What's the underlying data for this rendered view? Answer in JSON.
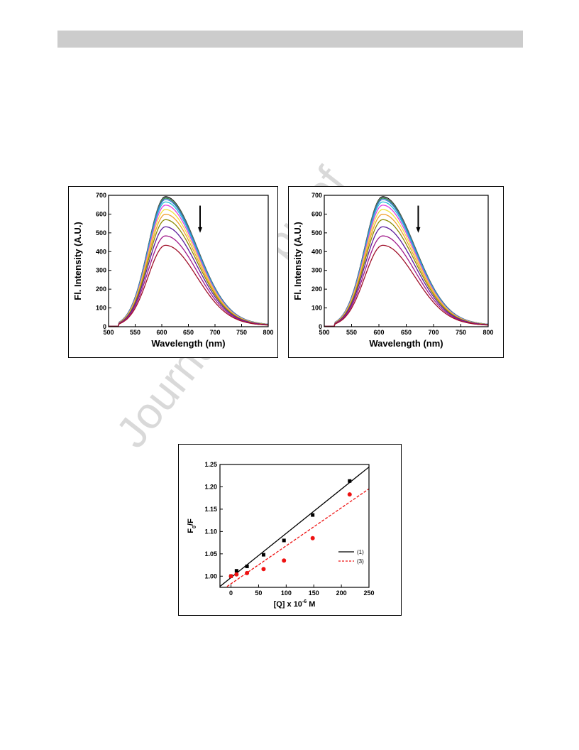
{
  "page": {
    "watermark": "Journal Pre-proof"
  },
  "chart_data": [
    {
      "id": "fig-a",
      "type": "line",
      "xlabel": "Wavelength (nm)",
      "ylabel": "Fl. Intensity (A.U.)",
      "xlim": [
        500,
        800
      ],
      "ylim": [
        0,
        700
      ],
      "xticks": [
        500,
        550,
        600,
        650,
        700,
        750,
        800
      ],
      "yticks": [
        0,
        100,
        200,
        300,
        400,
        500,
        600,
        700
      ],
      "annotation": "downward arrow (decreasing intensity)",
      "peak_wavelength": 607,
      "series": [
        {
          "peak": 690,
          "color": "#000000"
        },
        {
          "peak": 686,
          "color": "#808080"
        },
        {
          "peak": 682,
          "color": "#2e8b57"
        },
        {
          "peak": 675,
          "color": "#3a6fd8"
        },
        {
          "peak": 662,
          "color": "#20c0d8"
        },
        {
          "peak": 645,
          "color": "#e040e0"
        },
        {
          "peak": 622,
          "color": "#f0e040"
        },
        {
          "peak": 597,
          "color": "#f0a030"
        },
        {
          "peak": 568,
          "color": "#8a8a00"
        },
        {
          "peak": 530,
          "color": "#5a1a9a"
        },
        {
          "peak": 482,
          "color": "#a01a8a"
        },
        {
          "peak": 432,
          "color": "#a0102a"
        }
      ]
    },
    {
      "id": "fig-b",
      "type": "line",
      "xlabel": "Wavelength (nm)",
      "ylabel": "Fl. Intensity (A.U.)",
      "xlim": [
        500,
        800
      ],
      "ylim": [
        0,
        700
      ],
      "xticks": [
        500,
        550,
        600,
        650,
        700,
        750,
        800
      ],
      "yticks": [
        0,
        100,
        200,
        300,
        400,
        500,
        600,
        700
      ],
      "annotation": "downward arrow (decreasing intensity)",
      "peak_wavelength": 607,
      "series": [
        {
          "peak": 690,
          "color": "#000000"
        },
        {
          "peak": 686,
          "color": "#808080"
        },
        {
          "peak": 682,
          "color": "#2e8b57"
        },
        {
          "peak": 675,
          "color": "#3a6fd8"
        },
        {
          "peak": 662,
          "color": "#20c0d8"
        },
        {
          "peak": 645,
          "color": "#e040e0"
        },
        {
          "peak": 622,
          "color": "#f0e040"
        },
        {
          "peak": 597,
          "color": "#f0a030"
        },
        {
          "peak": 568,
          "color": "#8a8a00"
        },
        {
          "peak": 530,
          "color": "#5a1a9a"
        },
        {
          "peak": 482,
          "color": "#a01a8a"
        },
        {
          "peak": 432,
          "color": "#a0102a"
        }
      ]
    },
    {
      "id": "fig-c",
      "type": "scatter",
      "xlabel": "[Q] x 10",
      "xlabel_sup": "-6",
      "xlabel_suffix": " M",
      "ylabel": "F",
      "ylabel_sub": "0",
      "ylabel_suffix": "/F",
      "xlim": [
        -20,
        250
      ],
      "ylim": [
        0.975,
        1.25
      ],
      "xticks": [
        0,
        50,
        100,
        150,
        200,
        250
      ],
      "yticks": [
        "1.00",
        "1.05",
        "1.10",
        "1.15",
        "1.20",
        "1.25"
      ],
      "series": [
        {
          "name": "(1)",
          "color": "#000000",
          "marker": "square",
          "line_style": "solid",
          "x": [
            0,
            10,
            29,
            59,
            96,
            148,
            215
          ],
          "y": [
            1.0,
            1.012,
            1.022,
            1.048,
            1.08,
            1.137,
            1.213
          ],
          "fit": {
            "slope": 0.00099,
            "intercept": 0.9968
          }
        },
        {
          "name": "(3)",
          "color": "#ee1111",
          "marker": "circle",
          "line_style": "dashed",
          "x": [
            0,
            10,
            29,
            59,
            96,
            148,
            215
          ],
          "y": [
            1.0,
            1.004,
            1.007,
            1.016,
            1.035,
            1.085,
            1.183
          ],
          "fit": {
            "slope": 0.00085,
            "intercept": 0.983
          }
        }
      ],
      "legend_position": "right"
    }
  ]
}
